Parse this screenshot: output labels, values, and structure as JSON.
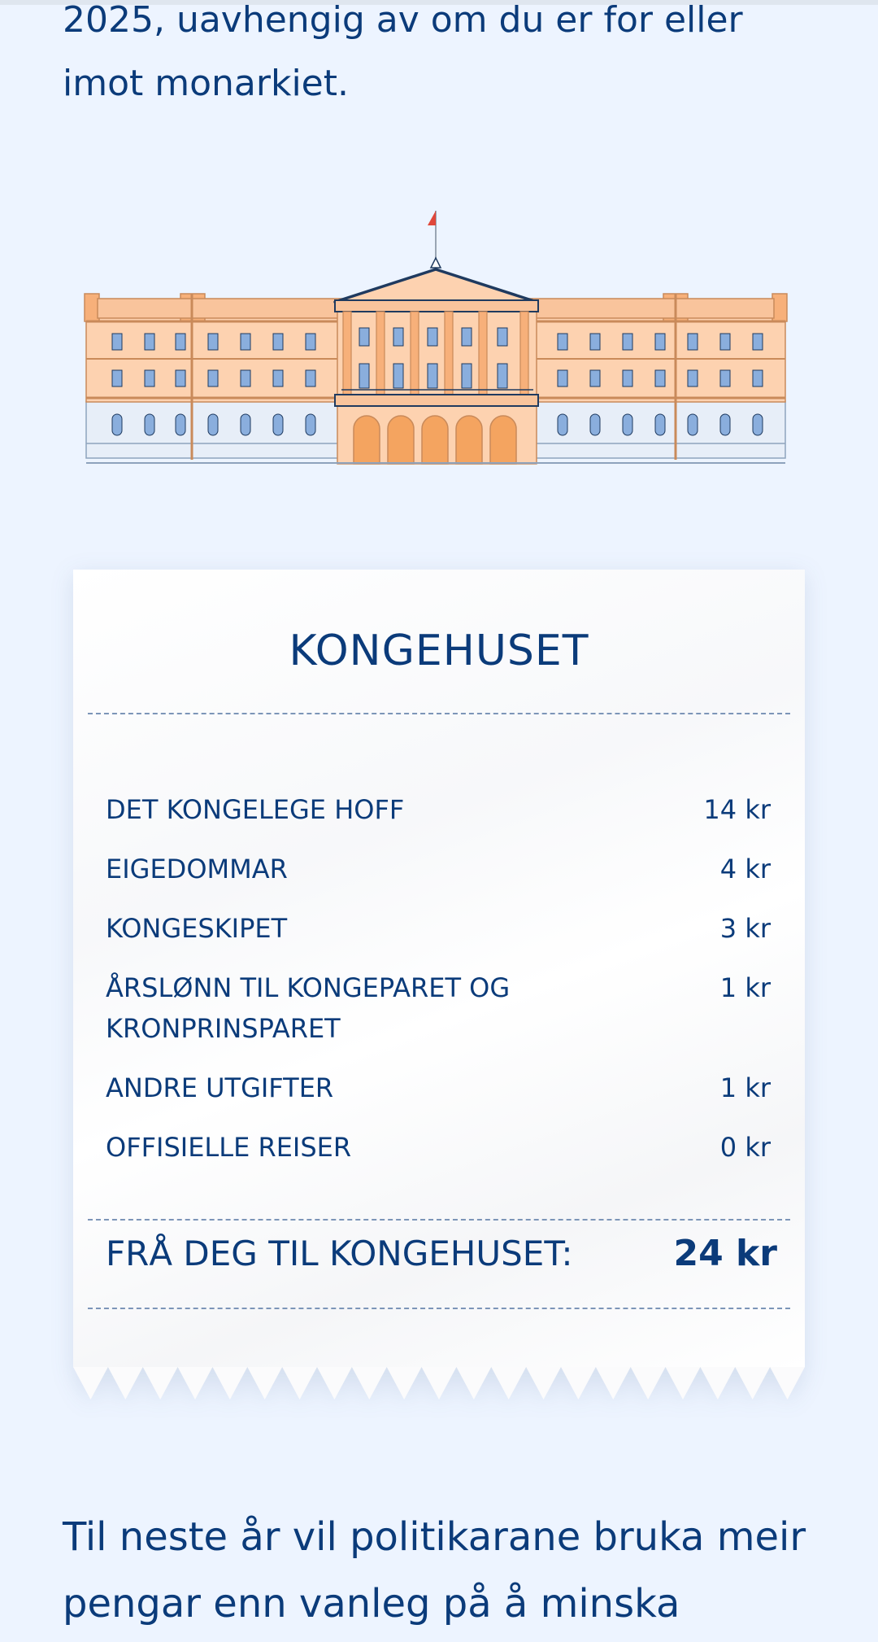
{
  "article": {
    "intro_text": "2025, uavhengig av om du er for eller imot monarkiet.",
    "outro_text": "Til neste år vil politikarane bruka meir pengar enn vanleg på å minska"
  },
  "illustration": {
    "icon": "royal-palace-illustration",
    "colors": {
      "facade": "#fdd2b0",
      "accent": "#f4a460",
      "windows": "#8aaedd",
      "outline": "#1f3a5f",
      "flag": "#e0473a"
    }
  },
  "receipt": {
    "title": "KONGEHUSET",
    "items": [
      {
        "label": "DET KONGELEGE HOFF",
        "amount": "14 kr"
      },
      {
        "label": "EIGEDOMMAR",
        "amount": "4 kr"
      },
      {
        "label": "KONGESKIPET",
        "amount": "3 kr"
      },
      {
        "label": "ÅRSLØNN TIL KONGEPARET OG KRONPRINSPARET",
        "amount": "1 kr"
      },
      {
        "label": "ANDRE UTGIFTER",
        "amount": "1 kr"
      },
      {
        "label": "OFFISIELLE REISER",
        "amount": "0 kr"
      }
    ],
    "total_label": "FRÅ DEG TIL KONGEHUSET:",
    "total_amount": "24 kr"
  },
  "colors": {
    "page_background": "#edf4ff",
    "text": "#0b3b7a"
  }
}
